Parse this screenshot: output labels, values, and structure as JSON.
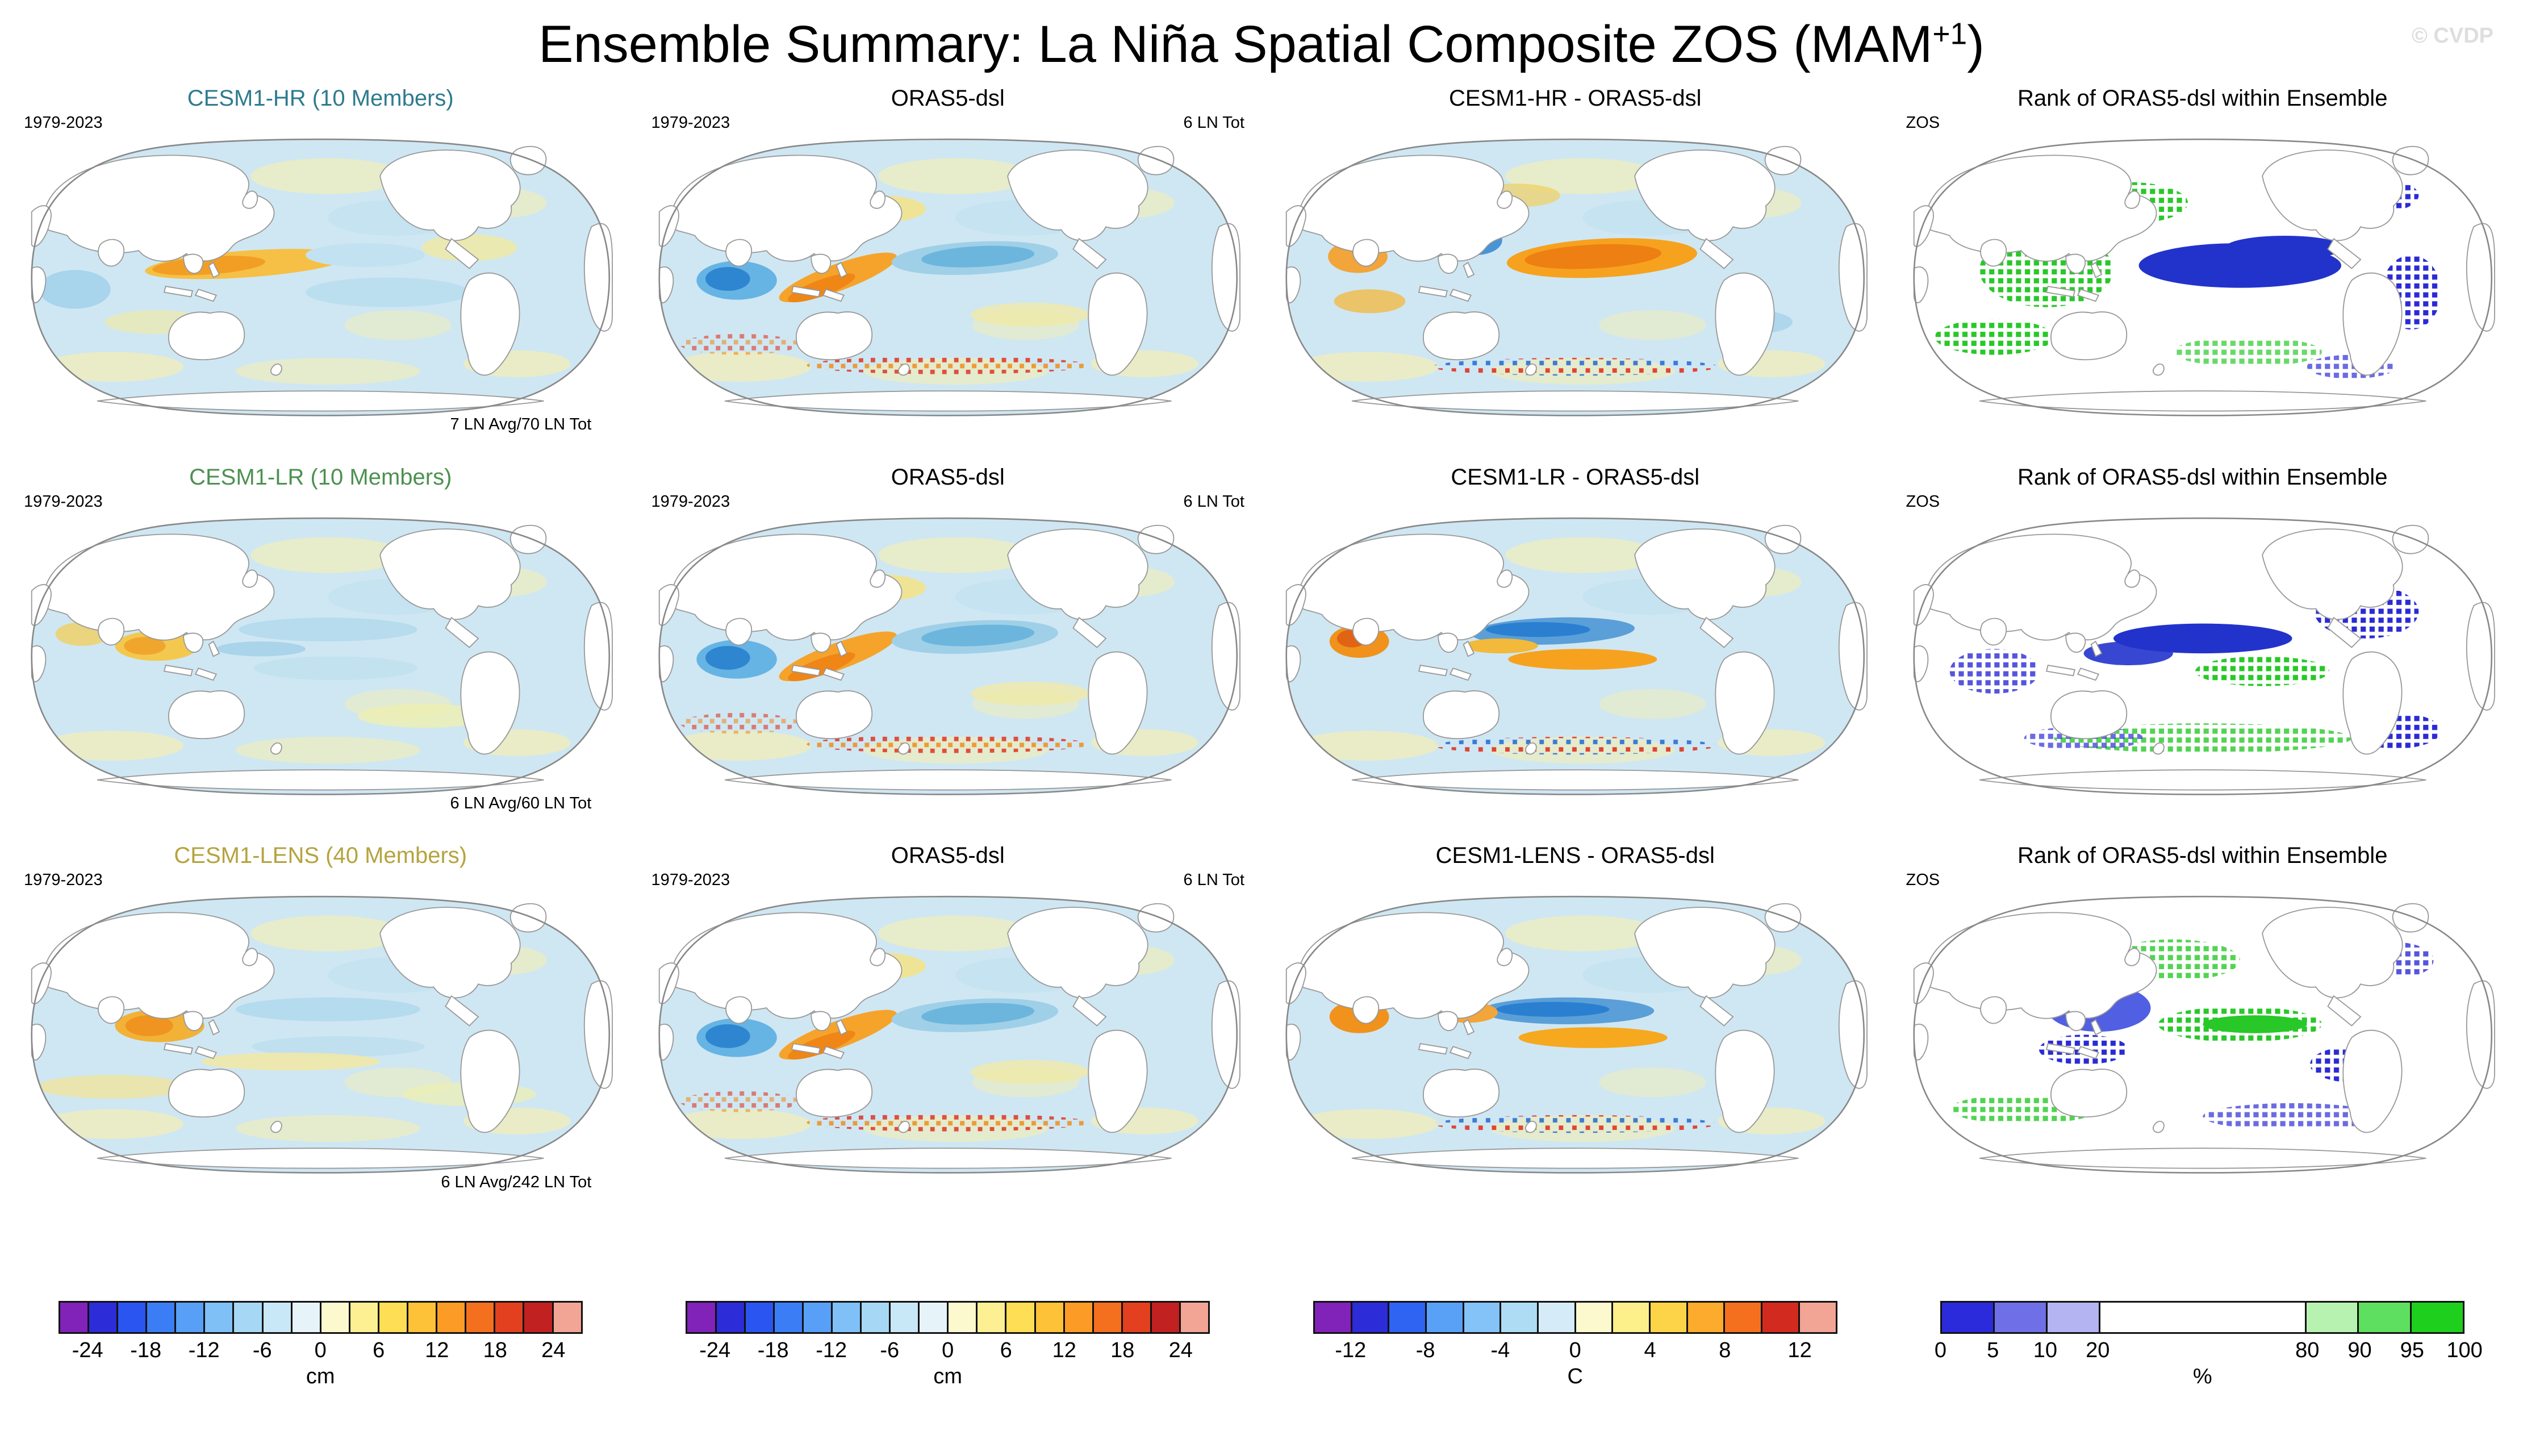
{
  "page": {
    "title": {
      "main": "Ensemble Summary: La Niña Spatial Composite ZOS (MAM",
      "sup": "+1",
      "end": ")"
    },
    "watermark": "© CVDP"
  },
  "panels": [
    {
      "title": "CESM1-HR (10 Members)",
      "title_color": "#2e7b8f",
      "top_left": "1979-2023",
      "top_right": "",
      "bottom_right": "7 LN Avg/70 LN Tot"
    },
    {
      "title": "ORAS5-dsl",
      "title_color": "#000000",
      "top_left": "1979-2023",
      "top_right": "6 LN Tot",
      "bottom_right": ""
    },
    {
      "title": "CESM1-HR - ORAS5-dsl",
      "title_color": "#000000",
      "top_left": "",
      "top_right": "",
      "bottom_right": ""
    },
    {
      "title": "Rank of ORAS5-dsl within Ensemble",
      "title_color": "#000000",
      "top_left": "ZOS",
      "top_right": "",
      "bottom_right": ""
    },
    {
      "title": "CESM1-LR (10 Members)",
      "title_color": "#4c9150",
      "top_left": "1979-2023",
      "top_right": "",
      "bottom_right": "6 LN Avg/60 LN Tot"
    },
    {
      "title": "ORAS5-dsl",
      "title_color": "#000000",
      "top_left": "1979-2023",
      "top_right": "6 LN Tot",
      "bottom_right": ""
    },
    {
      "title": "CESM1-LR - ORAS5-dsl",
      "title_color": "#000000",
      "top_left": "",
      "top_right": "",
      "bottom_right": ""
    },
    {
      "title": "Rank of ORAS5-dsl within Ensemble",
      "title_color": "#000000",
      "top_left": "ZOS",
      "top_right": "",
      "bottom_right": ""
    },
    {
      "title": "CESM1-LENS (40 Members)",
      "title_color": "#b5a33e",
      "top_left": "1979-2023",
      "top_right": "",
      "bottom_right": "6 LN Avg/242 LN Tot"
    },
    {
      "title": "ORAS5-dsl",
      "title_color": "#000000",
      "top_left": "1979-2023",
      "top_right": "6 LN Tot",
      "bottom_right": ""
    },
    {
      "title": "CESM1-LENS - ORAS5-dsl",
      "title_color": "#000000",
      "top_left": "",
      "top_right": "",
      "bottom_right": ""
    },
    {
      "title": "Rank of ORAS5-dsl within Ensemble",
      "title_color": "#000000",
      "top_left": "ZOS",
      "top_right": "",
      "bottom_right": ""
    }
  ],
  "colorbars": [
    {
      "unit": "cm",
      "ticks": [
        "-24",
        "-18",
        "-12",
        "-6",
        "0",
        "6",
        "12",
        "18",
        "24"
      ],
      "tick_pos": [
        0.0556,
        0.1667,
        0.2778,
        0.3889,
        0.5,
        0.6111,
        0.7222,
        0.8333,
        0.9444
      ],
      "colors": [
        "#8122b8",
        "#2c2cd8",
        "#2a55f0",
        "#3b7df5",
        "#58a0f7",
        "#7fc0f7",
        "#a6d8f5",
        "#c9e8f7",
        "#e6f4fa",
        "#fdf9cf",
        "#fdf093",
        "#fdde55",
        "#fdc238",
        "#fc9c27",
        "#f4701f",
        "#e2401f",
        "#c22121",
        "#f2a595"
      ]
    },
    {
      "unit": "cm",
      "ticks": [
        "-24",
        "-18",
        "-12",
        "-6",
        "0",
        "6",
        "12",
        "18",
        "24"
      ],
      "tick_pos": [
        0.0556,
        0.1667,
        0.2778,
        0.3889,
        0.5,
        0.6111,
        0.7222,
        0.8333,
        0.9444
      ],
      "colors": [
        "#8122b8",
        "#2c2cd8",
        "#2a55f0",
        "#3b7df5",
        "#58a0f7",
        "#7fc0f7",
        "#a6d8f5",
        "#c9e8f7",
        "#e6f4fa",
        "#fdf9cf",
        "#fdf093",
        "#fdde55",
        "#fdc238",
        "#fc9c27",
        "#f4701f",
        "#e2401f",
        "#c22121",
        "#f2a595"
      ]
    },
    {
      "unit": "C",
      "ticks": [
        "-12",
        "-8",
        "-4",
        "0",
        "4",
        "8",
        "12"
      ],
      "tick_pos": [
        0.0714,
        0.2143,
        0.3571,
        0.5,
        0.6429,
        0.7857,
        0.9286
      ],
      "colors": [
        "#8122b8",
        "#2c2cd8",
        "#2f63f2",
        "#59a0f7",
        "#84c3f7",
        "#aedcf5",
        "#d5ecf8",
        "#fdf9cf",
        "#fdef8a",
        "#fdd448",
        "#fcab2c",
        "#f4701f",
        "#d32a20",
        "#f2a595"
      ]
    },
    {
      "unit": "%",
      "ticks": [
        "0",
        "5",
        "10",
        "20",
        "80",
        "90",
        "95",
        "100"
      ],
      "tick_pos": [
        0,
        0.1,
        0.2,
        0.3,
        0.7,
        0.8,
        0.9,
        1
      ],
      "widths": [
        1,
        1,
        1,
        4,
        1,
        1,
        1
      ],
      "colors": [
        "#2b2bdc",
        "#6f6fe8",
        "#b4b4f2",
        "#ffffff",
        "#b8f2b0",
        "#5fdf5f",
        "#1ecf1e"
      ]
    }
  ],
  "chart_data": {
    "type": "heatmap",
    "subtype": "global-spatial-composite-map-grid",
    "title": "Ensemble Summary: La Niña Spatial Composite ZOS (MAM+1)",
    "grid": {
      "rows": 3,
      "cols": 4
    },
    "panel_titles": [
      [
        "CESM1-HR (10 Members)",
        "ORAS5-dsl",
        "CESM1-HR - ORAS5-dsl",
        "Rank of ORAS5-dsl within Ensemble"
      ],
      [
        "CESM1-LR (10 Members)",
        "ORAS5-dsl",
        "CESM1-LR - ORAS5-dsl",
        "Rank of ORAS5-dsl within Ensemble"
      ],
      [
        "CESM1-LENS (40 Members)",
        "ORAS5-dsl",
        "CESM1-LENS - ORAS5-dsl",
        "Rank of ORAS5-dsl within Ensemble"
      ]
    ],
    "annotations": {
      "period": "1979-2023",
      "obs_events": "6 LN Tot",
      "ensemble_events": [
        "7 LN Avg/70 LN Tot",
        "6 LN Avg/60 LN Tot",
        "6 LN Avg/242 LN Tot"
      ],
      "rank_variable_label": "ZOS",
      "watermark": "© CVDP"
    },
    "colorbars": [
      {
        "units": "cm",
        "ticks": [
          -24,
          -18,
          -12,
          -6,
          0,
          6,
          12,
          18,
          24
        ]
      },
      {
        "units": "cm",
        "ticks": [
          -24,
          -18,
          -12,
          -6,
          0,
          6,
          12,
          18,
          24
        ]
      },
      {
        "units": "C",
        "ticks": [
          -12,
          -8,
          -4,
          0,
          4,
          8,
          12
        ]
      },
      {
        "units": "%",
        "ticks": [
          0,
          5,
          10,
          20,
          80,
          90,
          95,
          100
        ]
      }
    ],
    "legend_position": "bottom",
    "title_colors": {
      "CESM1-HR": "#2e7b8f",
      "CESM1-LR": "#4c9150",
      "CESM1-LENS": "#b5a33e"
    }
  }
}
